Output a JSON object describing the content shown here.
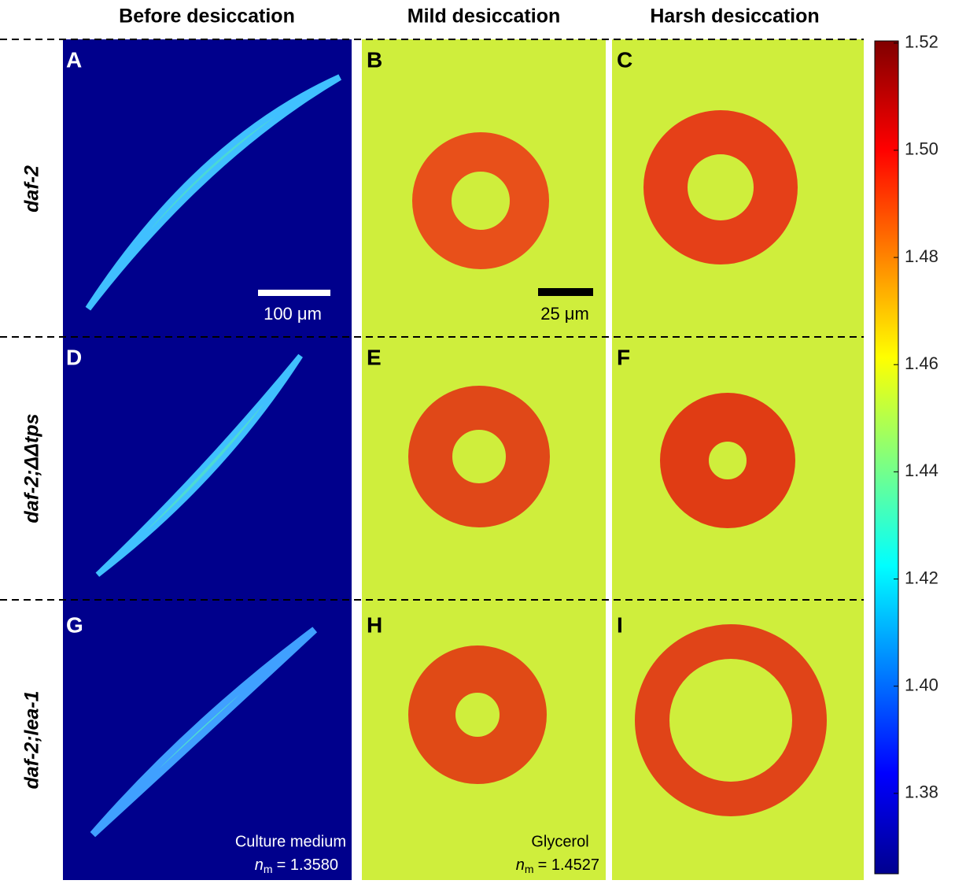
{
  "columns": [
    "Before desiccation",
    "Mild desiccation",
    "Harsh desiccation"
  ],
  "rows": [
    "daf-2",
    "daf-2;ΔΔtps",
    "daf-2;lea-1"
  ],
  "panels": [
    "A",
    "B",
    "C",
    "D",
    "E",
    "F",
    "G",
    "H",
    "I"
  ],
  "scale_bars": [
    "100 μm",
    "25 μm"
  ],
  "media": [
    {
      "name": "Culture medium",
      "symbol": "n",
      "subscript": "m",
      "value": "= 1.3580"
    },
    {
      "name": "Glycerol",
      "symbol": "n",
      "subscript": "m",
      "value": "= 1.4527"
    }
  ],
  "colorbar": {
    "lim": [
      1.365,
      1.5204
    ],
    "ticks": [
      1.38,
      {
        "value": 1.4,
        "label": "1.40"
      },
      1.42,
      1.44,
      1.46,
      1.48,
      {
        "value": 1.5,
        "label": "1.50"
      },
      1.52
    ]
  }
}
